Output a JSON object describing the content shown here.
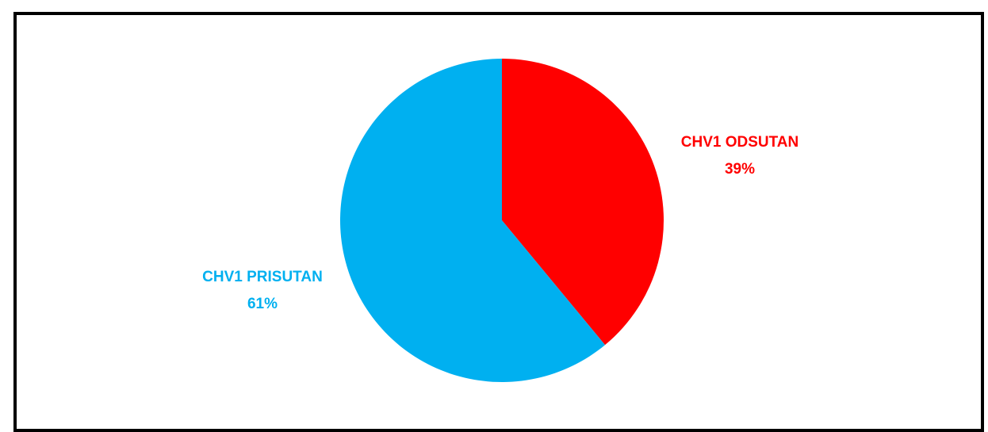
{
  "chart_data": {
    "type": "pie",
    "title": "",
    "start_angle_deg": 0,
    "direction": "clockwise",
    "slices": [
      {
        "name": "CHV1 ODSUTAN",
        "value": 39,
        "label": "39%",
        "color": "#FF0000"
      },
      {
        "name": "CHV1 PRISUTAN",
        "value": 61,
        "label": "61%",
        "color": "#00B0F0"
      }
    ],
    "legend": "none"
  }
}
